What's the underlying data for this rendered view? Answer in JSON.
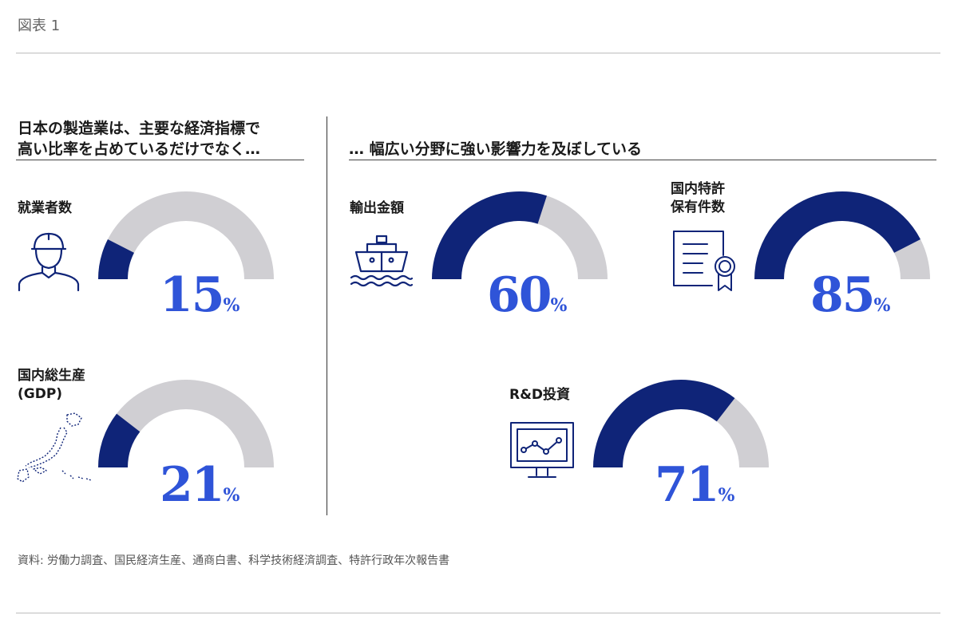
{
  "figure_label": "図表 1",
  "headings": {
    "left_line1": "日本の製造業は、主要な経済指標で",
    "left_line2": "高い比率を占めているだけでなく…",
    "right": "… 幅広い分野に強い影響力を及ぼしている"
  },
  "metrics": {
    "employees": {
      "label": "就業者数",
      "icon": "worker-icon",
      "value": 15,
      "value_text": "15",
      "unit": "%"
    },
    "gdp": {
      "label_line1": "国内総生産",
      "label_line2": "(GDP)",
      "icon": "japan-map-icon",
      "value": 21,
      "value_text": "21",
      "unit": "%"
    },
    "exports": {
      "label": "輸出金額",
      "icon": "ship-icon",
      "value": 60,
      "value_text": "60",
      "unit": "%"
    },
    "patents": {
      "label_line1": "国内特許",
      "label_line2": "保有件数",
      "icon": "certificate-icon",
      "value": 85,
      "value_text": "85",
      "unit": "%"
    },
    "rnd": {
      "label": "R&D投資",
      "icon": "monitor-chart-icon",
      "value": 71,
      "value_text": "71",
      "unit": "%"
    }
  },
  "colors": {
    "fill": "#0f2478",
    "track": "#d0cfd3",
    "value": "#2f54d8"
  },
  "chart_data": {
    "type": "gauge",
    "categories": [
      "就業者数",
      "国内総生産(GDP)",
      "輸出金額",
      "国内特許保有件数",
      "R&D投資"
    ],
    "values": [
      15,
      21,
      60,
      85,
      71
    ],
    "unit": "%",
    "ylim": [
      0,
      100
    ]
  },
  "source": "資料: 労働力調査、国民経済生産、通商白書、科学技術経済調査、特許行政年次報告書"
}
